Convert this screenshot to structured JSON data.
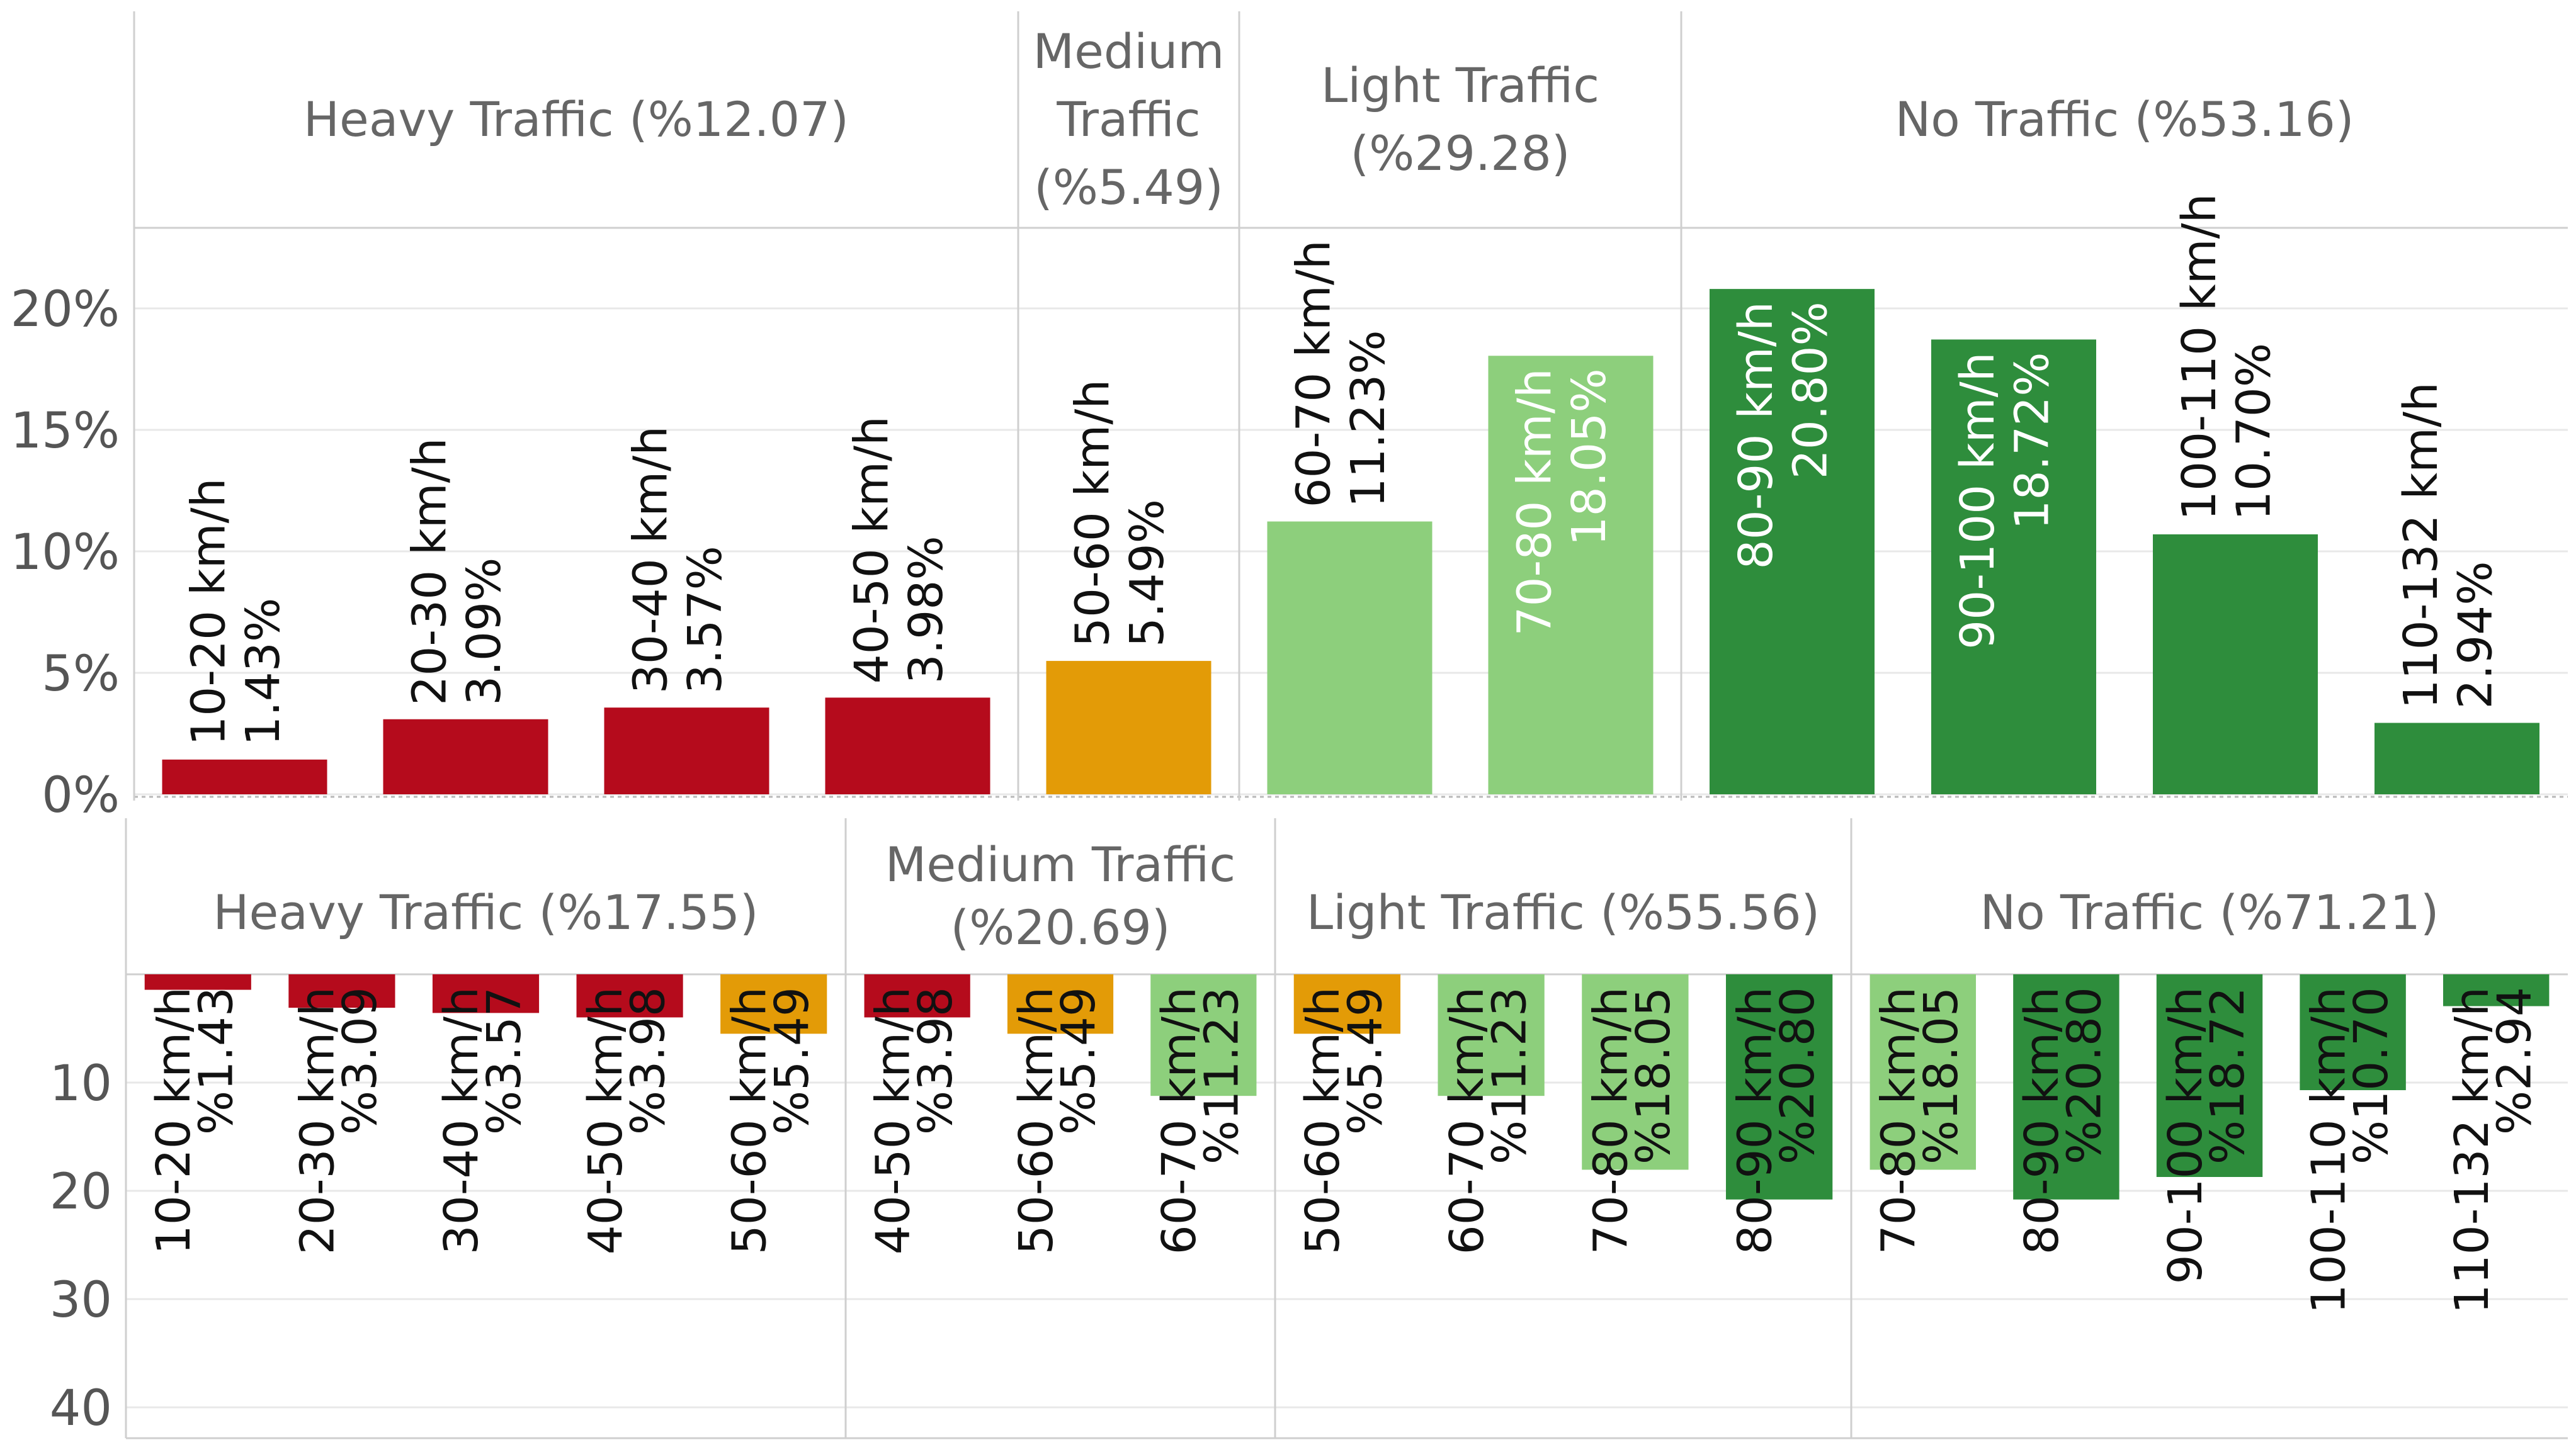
{
  "colors": {
    "heavy": "#b50b1c",
    "medium": "#e39b07",
    "light": "#8dcf7c",
    "none": "#2e8d3c",
    "axis_text": "#555555",
    "header_text": "#666666",
    "grid": "#e8e8e8",
    "divider": "#cfcfcf"
  },
  "chart_data": [
    {
      "type": "bar",
      "orientation": "vertical",
      "y_unit": "%",
      "ylim": [
        -1,
        24
      ],
      "yticks": [
        {
          "value": 0,
          "label": "0%"
        },
        {
          "value": 5,
          "label": "5%"
        },
        {
          "value": 10,
          "label": "10%"
        },
        {
          "value": 15,
          "label": "15%"
        },
        {
          "value": 20,
          "label": "20%"
        }
      ],
      "groups": [
        {
          "header": "Heavy Traffic (%12.07)",
          "color_key": "heavy",
          "bars": [
            {
              "category": "10-20 km/h",
              "value": 1.43,
              "label": "1.43%"
            },
            {
              "category": "20-30 km/h",
              "value": 3.09,
              "label": "3.09%"
            },
            {
              "category": "30-40 km/h",
              "value": 3.57,
              "label": "3.57%"
            },
            {
              "category": "40-50 km/h",
              "value": 3.98,
              "label": "3.98%"
            }
          ]
        },
        {
          "header": "Medium Traffic (%5.49)",
          "header_lines": [
            "Medium",
            "Traffic",
            "(%5.49)"
          ],
          "color_key": "medium",
          "bars": [
            {
              "category": "50-60 km/h",
              "value": 5.49,
              "label": "5.49%"
            }
          ]
        },
        {
          "header": "Light Traffic (%29.28)",
          "header_lines": [
            "Light Traffic",
            "(%29.28)"
          ],
          "color_key": "light",
          "bars": [
            {
              "category": "60-70 km/h",
              "value": 11.23,
              "label": "11.23%"
            },
            {
              "category": "70-80 km/h",
              "value": 18.05,
              "label": "18.05%"
            }
          ]
        },
        {
          "header": "No Traffic (%53.16)",
          "color_key": "none",
          "bars": [
            {
              "category": "80-90 km/h",
              "value": 20.8,
              "label": "20.80%"
            },
            {
              "category": "90-100 km/h",
              "value": 18.72,
              "label": "18.72%"
            },
            {
              "category": "100-110 km/h",
              "value": 10.7,
              "label": "10.70%"
            },
            {
              "category": "110-132 km/h",
              "value": 2.94,
              "label": "2.94%"
            }
          ]
        }
      ]
    },
    {
      "type": "bar",
      "orientation": "vertical-inverted",
      "ylim": [
        0,
        44
      ],
      "yticks": [
        {
          "value": 10,
          "label": "10"
        },
        {
          "value": 20,
          "label": "20"
        },
        {
          "value": 30,
          "label": "30"
        },
        {
          "value": 40,
          "label": "40"
        }
      ],
      "groups": [
        {
          "header": "Heavy Traffic (%17.55)",
          "bars": [
            {
              "category": "10-20 km/h",
              "value": 1.43,
              "label": "%1.43",
              "color_key": "heavy"
            },
            {
              "category": "20-30 km/h",
              "value": 3.09,
              "label": "%3.09",
              "color_key": "heavy"
            },
            {
              "category": "30-40 km/h",
              "value": 3.57,
              "label": "%3.57",
              "color_key": "heavy"
            },
            {
              "category": "40-50 km/h",
              "value": 3.98,
              "label": "%3.98",
              "color_key": "heavy"
            },
            {
              "category": "50-60 km/h",
              "value": 5.49,
              "label": "%5.49",
              "color_key": "medium"
            }
          ]
        },
        {
          "header": "Medium Traffic (%20.69)",
          "header_lines": [
            "Medium Traffic",
            "(%20.69)"
          ],
          "bars": [
            {
              "category": "40-50 km/h",
              "value": 3.98,
              "label": "%3.98",
              "color_key": "heavy"
            },
            {
              "category": "50-60 km/h",
              "value": 5.49,
              "label": "%5.49",
              "color_key": "medium"
            },
            {
              "category": "60-70 km/h",
              "value": 11.23,
              "label": "%11.23",
              "color_key": "light"
            }
          ]
        },
        {
          "header": "Light Traffic (%55.56)",
          "bars": [
            {
              "category": "50-60 km/h",
              "value": 5.49,
              "label": "%5.49",
              "color_key": "medium"
            },
            {
              "category": "60-70 km/h",
              "value": 11.23,
              "label": "%11.23",
              "color_key": "light"
            },
            {
              "category": "70-80 km/h",
              "value": 18.05,
              "label": "%18.05",
              "color_key": "light"
            },
            {
              "category": "80-90 km/h",
              "value": 20.8,
              "label": "%20.80",
              "color_key": "none"
            }
          ]
        },
        {
          "header": "No Traffic (%71.21)",
          "bars": [
            {
              "category": "70-80 km/h",
              "value": 18.05,
              "label": "%18.05",
              "color_key": "light"
            },
            {
              "category": "80-90 km/h",
              "value": 20.8,
              "label": "%20.80",
              "color_key": "none"
            },
            {
              "category": "90-100 km/h",
              "value": 18.72,
              "label": "%18.72",
              "color_key": "none"
            },
            {
              "category": "100-110 km/h",
              "value": 10.7,
              "label": "%10.70",
              "color_key": "none"
            },
            {
              "category": "110-132 km/h",
              "value": 2.94,
              "label": "%2.94",
              "color_key": "none"
            }
          ]
        }
      ]
    }
  ]
}
